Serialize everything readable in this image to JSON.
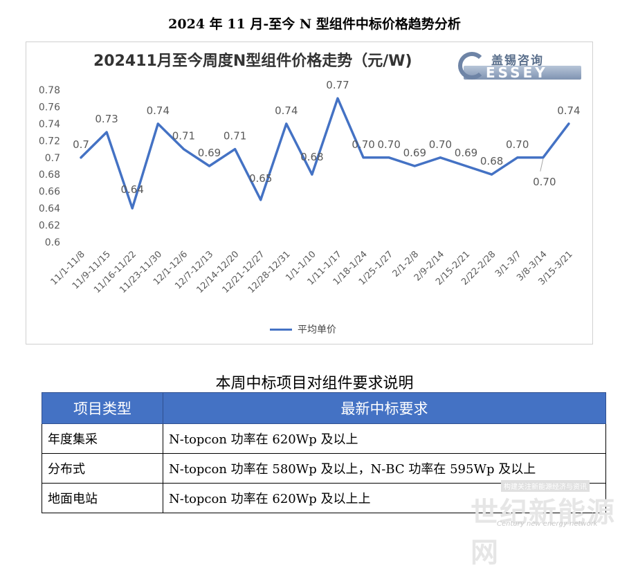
{
  "page_title": "2024 年 11 月-至今 N 型组件中标价格趋势分析",
  "logo": {
    "cn_text": "盖锡咨询",
    "en_text": "ESSEY"
  },
  "chart_data": {
    "type": "line",
    "title": "202411月至今周度N型组件价格走势（元/W)",
    "categories": [
      "11/1-11/8",
      "11/9-11/15",
      "11/16-11/22",
      "11/23-11/30",
      "12/1-12/6",
      "12/7-12/13",
      "12/14-12/20",
      "12/21-12/27",
      "12/28-12/31",
      "1/1-1/10",
      "1/11-1/17",
      "1/18-1/24",
      "1/25-1/27",
      "2/1-2/8",
      "2/9-2/14",
      "2/15-2/21",
      "2/22-2/28",
      "3/1-3/7",
      "3/8-3/14",
      "3/15-3/21"
    ],
    "series": [
      {
        "name": "平均单价",
        "color": "#4472c4",
        "values": [
          0.7,
          0.73,
          0.64,
          0.74,
          0.71,
          0.69,
          0.71,
          0.65,
          0.74,
          0.68,
          0.77,
          0.7,
          0.7,
          0.69,
          0.7,
          0.69,
          0.68,
          0.7,
          0.7,
          0.74
        ],
        "labels": [
          "0.7",
          "0.73",
          "0.64",
          "0.74",
          "0.71",
          "0.69",
          "0.71",
          "0.65",
          "0.74",
          "0.68",
          "0.77",
          "0.70",
          "0.70",
          "0.69",
          "0.70",
          "0.69",
          "0.68",
          "0.70",
          "0.70",
          "0.74"
        ]
      }
    ],
    "yticks": [
      "0.78",
      "0.76",
      "0.74",
      "0.72",
      "0.7",
      "0.68",
      "0.66",
      "0.64",
      "0.62",
      "0.6"
    ],
    "ylim": [
      0.6,
      0.78
    ],
    "grid": false,
    "legend_position": "bottom"
  },
  "table": {
    "caption": "本周中标项目对组件要求说明",
    "headers": [
      "项目类型",
      "最新中标要求"
    ],
    "rows": [
      [
        "年度集采",
        "N-topcon 功率在 620Wp 及以上"
      ],
      [
        "分布式",
        "N-topcon 功率在 580Wp 及以上，N-BC 功率在 595Wp 及以上"
      ],
      [
        "地面电站",
        "N-topcon 功率在 620Wp 及以上上"
      ]
    ]
  },
  "watermark": {
    "main": "世纪新能源网",
    "small": "构建关注新能源经济与资讯",
    "en": "Century new energy network"
  }
}
